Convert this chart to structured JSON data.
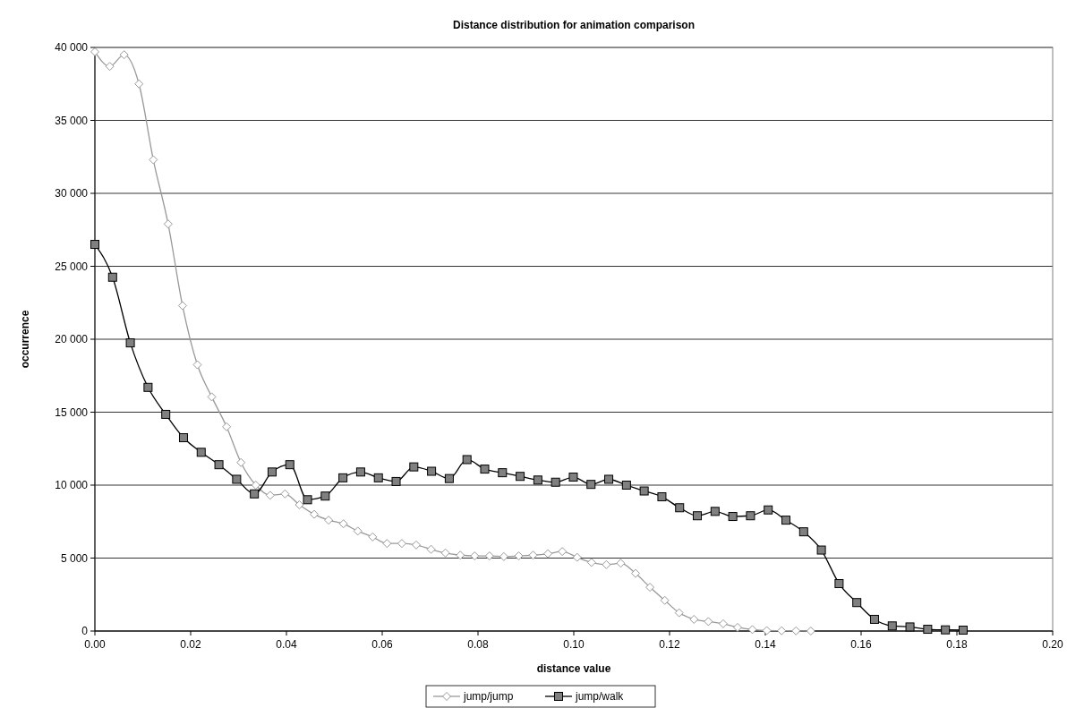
{
  "chart_data": {
    "type": "line",
    "title": "Distance distribution for animation comparison",
    "xlabel": "distance value",
    "ylabel": "occurrence",
    "xlim": [
      0,
      0.2
    ],
    "ylim": [
      0,
      40000
    ],
    "xticks": [
      {
        "value": 0,
        "label": "0.00"
      },
      {
        "value": 0.02,
        "label": "0.02"
      },
      {
        "value": 0.04,
        "label": "0.04"
      },
      {
        "value": 0.06,
        "label": "0.06"
      },
      {
        "value": 0.08,
        "label": "0.08"
      },
      {
        "value": 0.1,
        "label": "0.10"
      },
      {
        "value": 0.12,
        "label": "0.12"
      },
      {
        "value": 0.14,
        "label": "0.14"
      },
      {
        "value": 0.16,
        "label": "0.16"
      },
      {
        "value": 0.18,
        "label": "0.18"
      },
      {
        "value": 0.2,
        "label": "0.20"
      }
    ],
    "yticks": [
      0,
      {
        "value": 5000,
        "label": "5 000"
      },
      {
        "value": 10000,
        "label": "10 000"
      },
      {
        "value": 15000,
        "label": "15 000"
      },
      {
        "value": 20000,
        "label": "20 000"
      },
      {
        "value": 25000,
        "label": "25 000"
      },
      {
        "value": 30000,
        "label": "30 000"
      },
      {
        "value": 35000,
        "label": "35 000"
      },
      {
        "value": 40000,
        "label": "40 000"
      }
    ],
    "grid": "y",
    "legend": "bottom",
    "series": [
      {
        "name": "jump/jump",
        "color": "#999999",
        "marker": "diamond",
        "x": [
          0,
          0.0031,
          0.0061,
          0.0092,
          0.0122,
          0.0153,
          0.0183,
          0.0214,
          0.0244,
          0.0275,
          0.0305,
          0.0336,
          0.0366,
          0.0397,
          0.0427,
          0.0458,
          0.0488,
          0.0519,
          0.0549,
          0.058,
          0.061,
          0.0641,
          0.0671,
          0.0702,
          0.0732,
          0.0763,
          0.0793,
          0.0824,
          0.0854,
          0.0885,
          0.0915,
          0.0946,
          0.0976,
          0.1007,
          0.1037,
          0.1068,
          0.1098,
          0.1129,
          0.1159,
          0.119,
          0.122,
          0.1251,
          0.1281,
          0.1312,
          0.1342,
          0.1373,
          0.1403,
          0.1434,
          0.1464,
          0.1495
        ],
        "values": [
          39700,
          38700,
          39500,
          37500,
          32300,
          27900,
          22300,
          18250,
          16050,
          14000,
          11550,
          10000,
          9300,
          9400,
          8650,
          8000,
          7600,
          7350,
          6850,
          6450,
          6000,
          6000,
          5900,
          5600,
          5350,
          5200,
          5150,
          5150,
          5100,
          5150,
          5200,
          5300,
          5450,
          5050,
          4700,
          4550,
          4650,
          3950,
          3000,
          2100,
          1250,
          800,
          650,
          500,
          250,
          100,
          30,
          20,
          10,
          0
        ]
      },
      {
        "name": "jump/walk",
        "color": "#000000",
        "marker": "square",
        "x": [
          0,
          0.0037,
          0.0074,
          0.0111,
          0.0148,
          0.0185,
          0.0222,
          0.0259,
          0.0296,
          0.0333,
          0.037,
          0.0407,
          0.0444,
          0.0481,
          0.0518,
          0.0555,
          0.0592,
          0.0629,
          0.0666,
          0.0703,
          0.074,
          0.0777,
          0.0814,
          0.0851,
          0.0888,
          0.0925,
          0.0962,
          0.0999,
          0.1036,
          0.1073,
          0.111,
          0.1147,
          0.1184,
          0.1221,
          0.1258,
          0.1295,
          0.1332,
          0.1369,
          0.1406,
          0.1443,
          0.148,
          0.1517,
          0.1554,
          0.1591,
          0.1628,
          0.1665,
          0.1702,
          0.1739,
          0.1776,
          0.1813
        ],
        "values": [
          26500,
          24250,
          19750,
          16700,
          14850,
          13250,
          12250,
          11400,
          10400,
          9400,
          10900,
          11400,
          9000,
          9250,
          10500,
          10900,
          10500,
          10250,
          11250,
          10950,
          10450,
          11750,
          11100,
          10850,
          10600,
          10350,
          10200,
          10550,
          10050,
          10400,
          10000,
          9600,
          9200,
          8450,
          7900,
          8200,
          7850,
          7900,
          8300,
          7600,
          6800,
          5550,
          3250,
          1950,
          800,
          350,
          280,
          120,
          80,
          60
        ]
      }
    ]
  }
}
